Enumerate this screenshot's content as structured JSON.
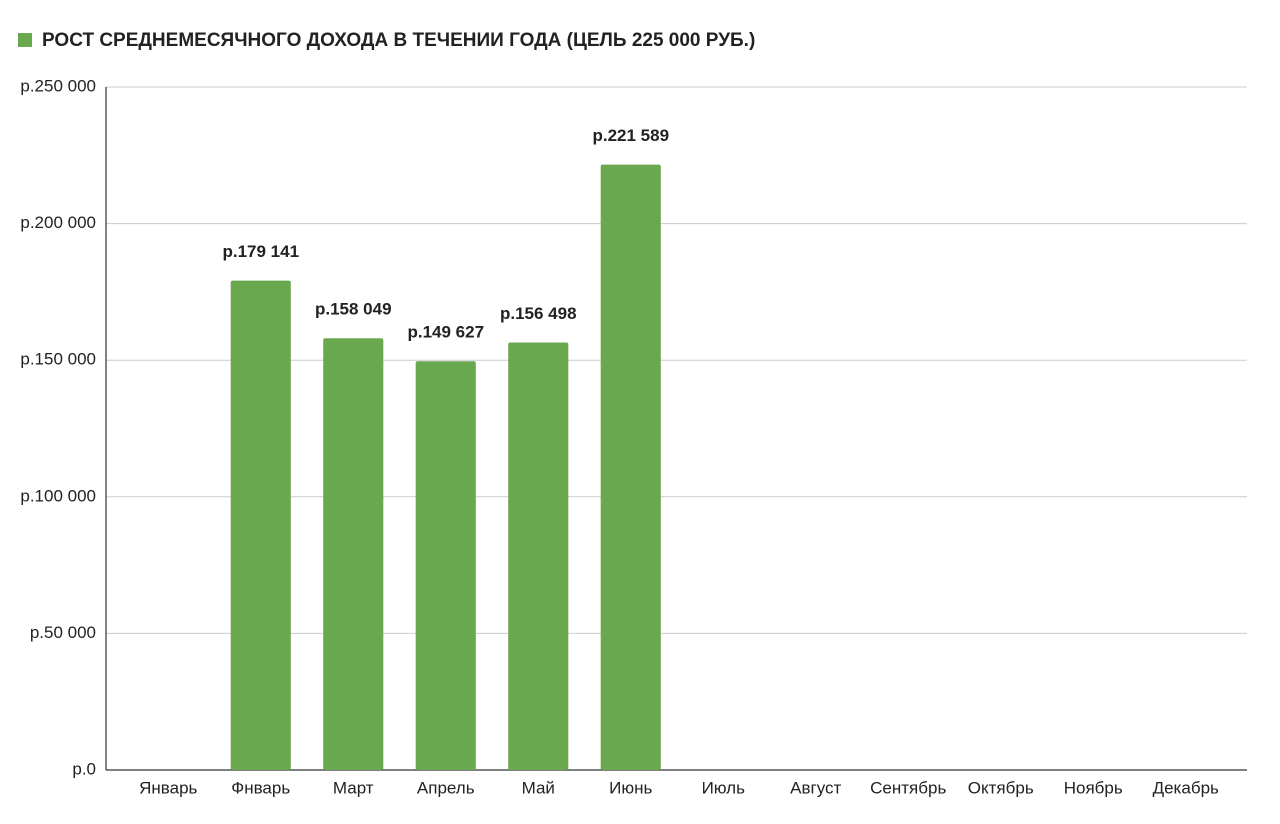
{
  "chart_data": {
    "type": "bar",
    "categories": [
      "Январь",
      "Фнварь",
      "Март",
      "Апрель",
      "Май",
      "Июнь",
      "Июль",
      "Август",
      "Сентябрь",
      "Октябрь",
      "Ноябрь",
      "Декабрь"
    ],
    "series": [
      {
        "name": "РОСТ СРЕДНЕМЕСЯЧНОГО ДОХОДА В ТЕЧЕНИИ ГОДА   (ЦЕЛЬ 225 000 РУБ.)",
        "color": "#6aa84f",
        "values": [
          null,
          179141,
          158049,
          149627,
          156498,
          221589,
          null,
          null,
          null,
          null,
          null,
          null
        ],
        "value_labels": [
          null,
          "р.179 141",
          "р.158 049",
          "р.149 627",
          "р.156 498",
          "р.221 589",
          null,
          null,
          null,
          null,
          null,
          null
        ]
      }
    ],
    "ylim": [
      0,
      250000
    ],
    "yticks": [
      {
        "value": 0,
        "label": "р.0"
      },
      {
        "value": 50000,
        "label": "р.50 000"
      },
      {
        "value": 100000,
        "label": "р.100 000"
      },
      {
        "value": 150000,
        "label": "р.150 000"
      },
      {
        "value": 200000,
        "label": "р.200 000"
      },
      {
        "value": 250000,
        "label": "р.250 000"
      }
    ],
    "grid": true,
    "legend": "top-left"
  }
}
